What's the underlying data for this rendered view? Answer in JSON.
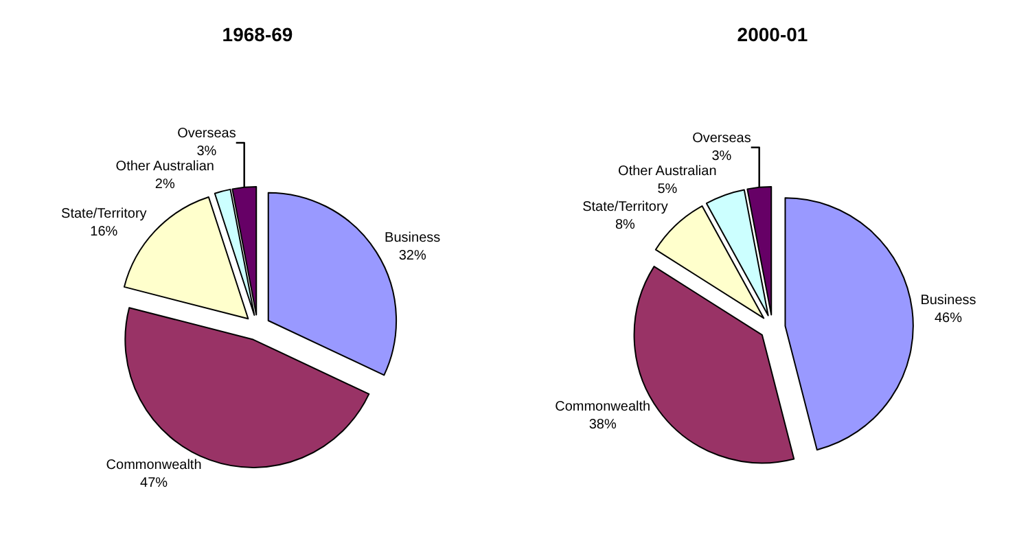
{
  "chart_data": [
    {
      "type": "pie",
      "title": "1968-69",
      "categories": [
        "Business",
        "Commonwealth",
        "State/Territory",
        "Other Australian",
        "Overseas"
      ],
      "values": [
        32,
        47,
        16,
        2,
        3
      ],
      "value_labels": [
        "32%",
        "47%",
        "16%",
        "2%",
        "3%"
      ],
      "colors": [
        "#9999ff",
        "#993366",
        "#ffffcc",
        "#ccffff",
        "#660066"
      ],
      "legend": false
    },
    {
      "type": "pie",
      "title": "2000-01",
      "categories": [
        "Business",
        "Commonwealth",
        "State/Territory",
        "Other Australian",
        "Overseas"
      ],
      "values": [
        46,
        38,
        8,
        5,
        3
      ],
      "value_labels": [
        "46%",
        "38%",
        "8%",
        "5%",
        "3%"
      ],
      "colors": [
        "#9999ff",
        "#993366",
        "#ffffcc",
        "#ccffff",
        "#660066"
      ],
      "legend": false
    }
  ]
}
